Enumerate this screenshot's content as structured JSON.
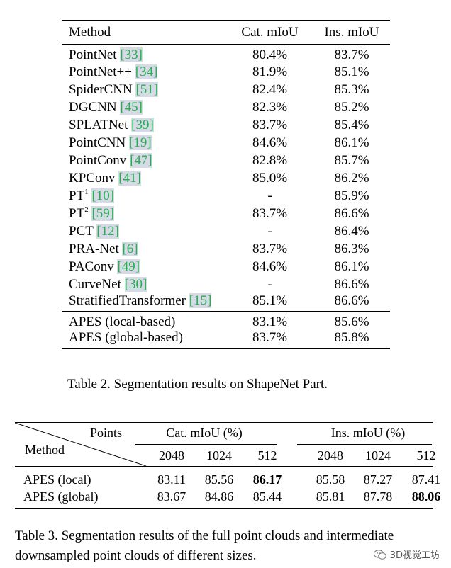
{
  "table2": {
    "headers": {
      "method": "Method",
      "cat": "Cat. mIoU",
      "ins": "Ins. mIoU"
    },
    "rows": [
      {
        "name": "PointNet",
        "sup": "",
        "ref": "[33]",
        "cat": "80.4%",
        "ins": "83.7%",
        "cat_bold": false,
        "ins_bold": false
      },
      {
        "name": "PointNet++",
        "sup": "",
        "ref": "[34]",
        "cat": "81.9%",
        "ins": "85.1%",
        "cat_bold": false,
        "ins_bold": false
      },
      {
        "name": "SpiderCNN",
        "sup": "",
        "ref": "[51]",
        "cat": "82.4%",
        "ins": "85.3%",
        "cat_bold": false,
        "ins_bold": false
      },
      {
        "name": "DGCNN",
        "sup": "",
        "ref": "[45]",
        "cat": "82.3%",
        "ins": "85.2%",
        "cat_bold": false,
        "ins_bold": false
      },
      {
        "name": "SPLATNet",
        "sup": "",
        "ref": "[39]",
        "cat": "83.7%",
        "ins": "85.4%",
        "cat_bold": false,
        "ins_bold": false
      },
      {
        "name": "PointCNN",
        "sup": "",
        "ref": "[19]",
        "cat": "84.6%",
        "ins": "86.1%",
        "cat_bold": false,
        "ins_bold": false
      },
      {
        "name": "PointConv",
        "sup": "",
        "ref": "[47]",
        "cat": "82.8%",
        "ins": "85.7%",
        "cat_bold": false,
        "ins_bold": false
      },
      {
        "name": "KPConv",
        "sup": "",
        "ref": "[41]",
        "cat": "85.0%",
        "ins": "86.2%",
        "cat_bold": false,
        "ins_bold": false
      },
      {
        "name": "PT",
        "sup": "1",
        "ref": "[10]",
        "cat": "-",
        "ins": "85.9%",
        "cat_bold": false,
        "ins_bold": false
      },
      {
        "name": "PT",
        "sup": "2",
        "ref": "[59]",
        "cat": "83.7%",
        "ins": "86.6%",
        "cat_bold": false,
        "ins_bold": true
      },
      {
        "name": "PCT",
        "sup": "",
        "ref": "[12]",
        "cat": "-",
        "ins": "86.4%",
        "cat_bold": false,
        "ins_bold": false
      },
      {
        "name": "PRA-Net",
        "sup": "",
        "ref": "[6]",
        "cat": "83.7%",
        "ins": "86.3%",
        "cat_bold": false,
        "ins_bold": false
      },
      {
        "name": "PAConv",
        "sup": "",
        "ref": "[49]",
        "cat": "84.6%",
        "ins": "86.1%",
        "cat_bold": false,
        "ins_bold": false
      },
      {
        "name": "CurveNet",
        "sup": "",
        "ref": "[30]",
        "cat": "-",
        "ins": "86.6%",
        "cat_bold": false,
        "ins_bold": true
      },
      {
        "name": "StratifiedTransformer",
        "sup": "",
        "ref": "[15]",
        "cat": "85.1%",
        "ins": "86.6%",
        "cat_bold": true,
        "ins_bold": true
      }
    ],
    "apes_rows": [
      {
        "name": "APES (local-based)",
        "cat": "83.1%",
        "ins": "85.6%"
      },
      {
        "name": "APES (global-based)",
        "cat": "83.7%",
        "ins": "85.8%"
      }
    ],
    "caption": "Table 2. Segmentation results on ShapeNet Part."
  },
  "table3": {
    "corner_top": "Points",
    "corner_bottom": "Method",
    "group_cat": "Cat. mIoU (%)",
    "group_ins": "Ins. mIoU (%)",
    "sizes": [
      "2048",
      "1024",
      "512",
      "2048",
      "1024",
      "512"
    ],
    "rows": [
      {
        "name": "APES (local)",
        "values": [
          "83.11",
          "85.56",
          "86.17",
          "85.58",
          "87.27",
          "87.41"
        ],
        "bold": [
          false,
          false,
          true,
          false,
          false,
          false
        ]
      },
      {
        "name": "APES (global)",
        "values": [
          "83.67",
          "84.86",
          "85.44",
          "85.81",
          "87.78",
          "88.06"
        ],
        "bold": [
          false,
          false,
          false,
          false,
          false,
          true
        ]
      }
    ],
    "caption": "Table 3. Segmentation results of the full point clouds and intermediate downsampled point clouds of different sizes."
  },
  "watermark": {
    "text": "3D视觉工坊",
    "icon": "wechat-icon"
  }
}
